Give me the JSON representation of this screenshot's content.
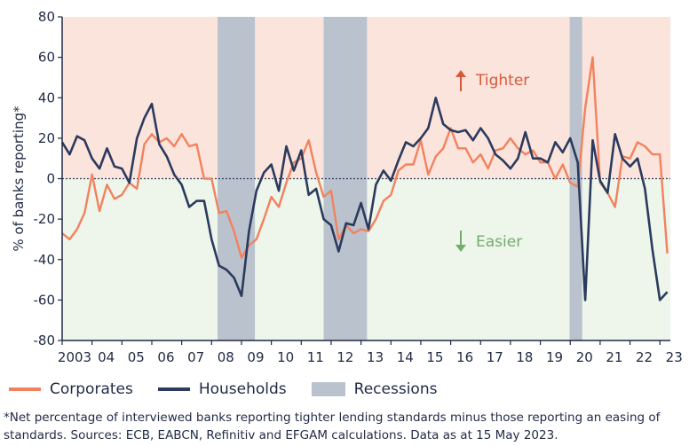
{
  "chart_data": {
    "type": "line",
    "ylabel": "% of banks reporting*",
    "ylim": [
      -80,
      80
    ],
    "yticks": [
      80,
      60,
      40,
      20,
      0,
      -20,
      -40,
      -60,
      -80
    ],
    "xlim": [
      2003.0,
      2023.35
    ],
    "xticks": [
      {
        "value": 2003,
        "label": "2003"
      },
      {
        "value": 2004,
        "label": "04"
      },
      {
        "value": 2005,
        "label": "05"
      },
      {
        "value": 2006,
        "label": "06"
      },
      {
        "value": 2007,
        "label": "07"
      },
      {
        "value": 2008,
        "label": "08"
      },
      {
        "value": 2009,
        "label": "09"
      },
      {
        "value": 2010,
        "label": "10"
      },
      {
        "value": 2011,
        "label": "11"
      },
      {
        "value": 2012,
        "label": "12"
      },
      {
        "value": 2013,
        "label": "13"
      },
      {
        "value": 2014,
        "label": "14"
      },
      {
        "value": 2015,
        "label": "15"
      },
      {
        "value": 2016,
        "label": "16"
      },
      {
        "value": 2017,
        "label": "17"
      },
      {
        "value": 2018,
        "label": "18"
      },
      {
        "value": 2019,
        "label": "19"
      },
      {
        "value": 2020,
        "label": "20"
      },
      {
        "value": 2021,
        "label": "21"
      },
      {
        "value": 2022,
        "label": "22"
      },
      {
        "value": 2023,
        "label": "23"
      }
    ],
    "annotations": {
      "tighter": "Tighter",
      "easier": "Easier"
    },
    "recessions": [
      {
        "start": 2008.2,
        "end": 2009.45
      },
      {
        "start": 2011.75,
        "end": 2013.2
      },
      {
        "start": 2019.98,
        "end": 2020.4
      }
    ],
    "series": [
      {
        "name": "Corporates",
        "color": "#f2825e",
        "x": [
          2003.0,
          2003.25,
          2003.5,
          2003.75,
          2004.0,
          2004.25,
          2004.5,
          2004.75,
          2005.0,
          2005.25,
          2005.5,
          2005.75,
          2006.0,
          2006.25,
          2006.5,
          2006.75,
          2007.0,
          2007.25,
          2007.5,
          2007.75,
          2008.0,
          2008.25,
          2008.5,
          2008.75,
          2009.0,
          2009.25,
          2009.5,
          2009.75,
          2010.0,
          2010.25,
          2010.5,
          2010.75,
          2011.0,
          2011.25,
          2011.5,
          2011.75,
          2012.0,
          2012.25,
          2012.5,
          2012.75,
          2013.0,
          2013.25,
          2013.5,
          2013.75,
          2014.0,
          2014.25,
          2014.5,
          2014.75,
          2015.0,
          2015.25,
          2015.5,
          2015.75,
          2016.0,
          2016.25,
          2016.5,
          2016.75,
          2017.0,
          2017.25,
          2017.5,
          2017.75,
          2018.0,
          2018.25,
          2018.5,
          2018.75,
          2019.0,
          2019.25,
          2019.5,
          2019.75,
          2020.0,
          2020.25,
          2020.5,
          2020.75,
          2021.0,
          2021.25,
          2021.5,
          2021.75,
          2022.0,
          2022.25,
          2022.5,
          2022.75,
          2023.0,
          2023.25
        ],
        "values": [
          -27,
          -30,
          -25,
          -17,
          2,
          -16,
          -3,
          -10,
          -8,
          -2,
          -5,
          17,
          22,
          18,
          20,
          16,
          22,
          16,
          17,
          0,
          0,
          -17,
          -16,
          -26,
          -39,
          -33,
          -30,
          -20,
          -9,
          -14,
          -2,
          8,
          10,
          19,
          3,
          -9,
          -6,
          -30,
          -23,
          -27,
          -25,
          -26,
          -20,
          -11,
          -8,
          4,
          7,
          7,
          19,
          2,
          11,
          15,
          25,
          15,
          15,
          8,
          12,
          5,
          14,
          15,
          20,
          15,
          12,
          14,
          8,
          8,
          0,
          7,
          -2,
          -4,
          35,
          60,
          -2,
          -7,
          -14,
          11,
          10,
          18,
          16,
          12,
          12,
          -37
        ]
      },
      {
        "name": "Households",
        "color": "#2b3a5e",
        "x": [
          2003.0,
          2003.25,
          2003.5,
          2003.75,
          2004.0,
          2004.25,
          2004.5,
          2004.75,
          2005.0,
          2005.25,
          2005.5,
          2005.75,
          2006.0,
          2006.25,
          2006.5,
          2006.75,
          2007.0,
          2007.25,
          2007.5,
          2007.75,
          2008.0,
          2008.25,
          2008.5,
          2008.75,
          2009.0,
          2009.25,
          2009.5,
          2009.75,
          2010.0,
          2010.25,
          2010.5,
          2010.75,
          2011.0,
          2011.25,
          2011.5,
          2011.75,
          2012.0,
          2012.25,
          2012.5,
          2012.75,
          2013.0,
          2013.25,
          2013.5,
          2013.75,
          2014.0,
          2014.25,
          2014.5,
          2014.75,
          2015.0,
          2015.25,
          2015.5,
          2015.75,
          2016.0,
          2016.25,
          2016.5,
          2016.75,
          2017.0,
          2017.25,
          2017.5,
          2017.75,
          2018.0,
          2018.25,
          2018.5,
          2018.75,
          2019.0,
          2019.25,
          2019.5,
          2019.75,
          2020.0,
          2020.25,
          2020.5,
          2020.75,
          2021.0,
          2021.25,
          2021.5,
          2021.75,
          2022.0,
          2022.25,
          2022.5,
          2022.75,
          2023.0,
          2023.25
        ],
        "values": [
          18,
          12,
          21,
          19,
          10,
          5,
          15,
          6,
          5,
          -2,
          20,
          30,
          37,
          17,
          11,
          2,
          -3,
          -14,
          -11,
          -11,
          -30,
          -43,
          -45,
          -49,
          -58,
          -26,
          -6,
          3,
          7,
          -6,
          16,
          4,
          14,
          -8,
          -5,
          -20,
          -23,
          -36,
          -22,
          -23,
          -12,
          -25,
          -3,
          4,
          -1,
          9,
          18,
          16,
          20,
          25,
          40,
          27,
          24,
          23,
          24,
          19,
          25,
          20,
          12,
          9,
          5,
          10,
          23,
          10,
          10,
          8,
          18,
          13,
          20,
          8,
          -60,
          19,
          -1,
          -7,
          22,
          10,
          6,
          10,
          -5,
          -35,
          -60,
          -56
        ]
      }
    ]
  },
  "legend": {
    "corporates": "Corporates",
    "households": "Households",
    "recessions": "Recessions"
  },
  "colors": {
    "tighter_bg": "#fbe4dc",
    "easier_bg": "#eef5ea",
    "recession": "#bac3cd",
    "tighter_text": "#d9583a",
    "easier_text": "#73ad6c",
    "axis": "#1f2a44"
  },
  "footnote": "*Net percentage of interviewed banks reporting tighter lending standards minus those reporting an easing of standards. Sources: ECB, EABCN, Refinitiv and EFGAM calculations. Data as at 15 May 2023."
}
